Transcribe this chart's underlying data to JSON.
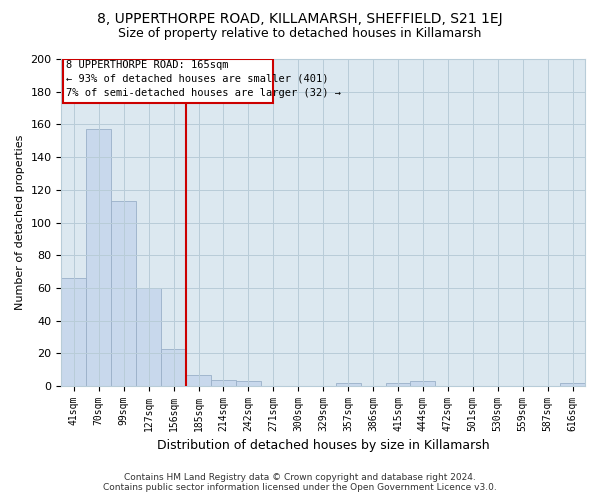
{
  "title": "8, UPPERTHORPE ROAD, KILLAMARSH, SHEFFIELD, S21 1EJ",
  "subtitle": "Size of property relative to detached houses in Killamarsh",
  "xlabel": "Distribution of detached houses by size in Killamarsh",
  "ylabel": "Number of detached properties",
  "bar_labels": [
    "41sqm",
    "70sqm",
    "99sqm",
    "127sqm",
    "156sqm",
    "185sqm",
    "214sqm",
    "242sqm",
    "271sqm",
    "300sqm",
    "329sqm",
    "357sqm",
    "386sqm",
    "415sqm",
    "444sqm",
    "472sqm",
    "501sqm",
    "530sqm",
    "559sqm",
    "587sqm",
    "616sqm"
  ],
  "bar_values": [
    66,
    157,
    113,
    60,
    23,
    7,
    4,
    3,
    0,
    0,
    0,
    2,
    0,
    2,
    3,
    0,
    0,
    0,
    0,
    0,
    2
  ],
  "bar_color": "#c8d8ec",
  "bar_edge_color": "#9ab0c8",
  "vline_x": 4.5,
  "vline_color": "#cc0000",
  "annotation_line1": "8 UPPERTHORPE ROAD: 165sqm",
  "annotation_line2": "← 93% of detached houses are smaller (401)",
  "annotation_line3": "7% of semi-detached houses are larger (32) →",
  "ylim": [
    0,
    200
  ],
  "yticks": [
    0,
    20,
    40,
    60,
    80,
    100,
    120,
    140,
    160,
    180,
    200
  ],
  "footnote": "Contains HM Land Registry data © Crown copyright and database right 2024.\nContains public sector information licensed under the Open Government Licence v3.0.",
  "bg_color": "#ffffff",
  "plot_bg_color": "#dce8f0",
  "grid_color": "#b8ccd8",
  "title_fontsize": 10,
  "subtitle_fontsize": 9
}
